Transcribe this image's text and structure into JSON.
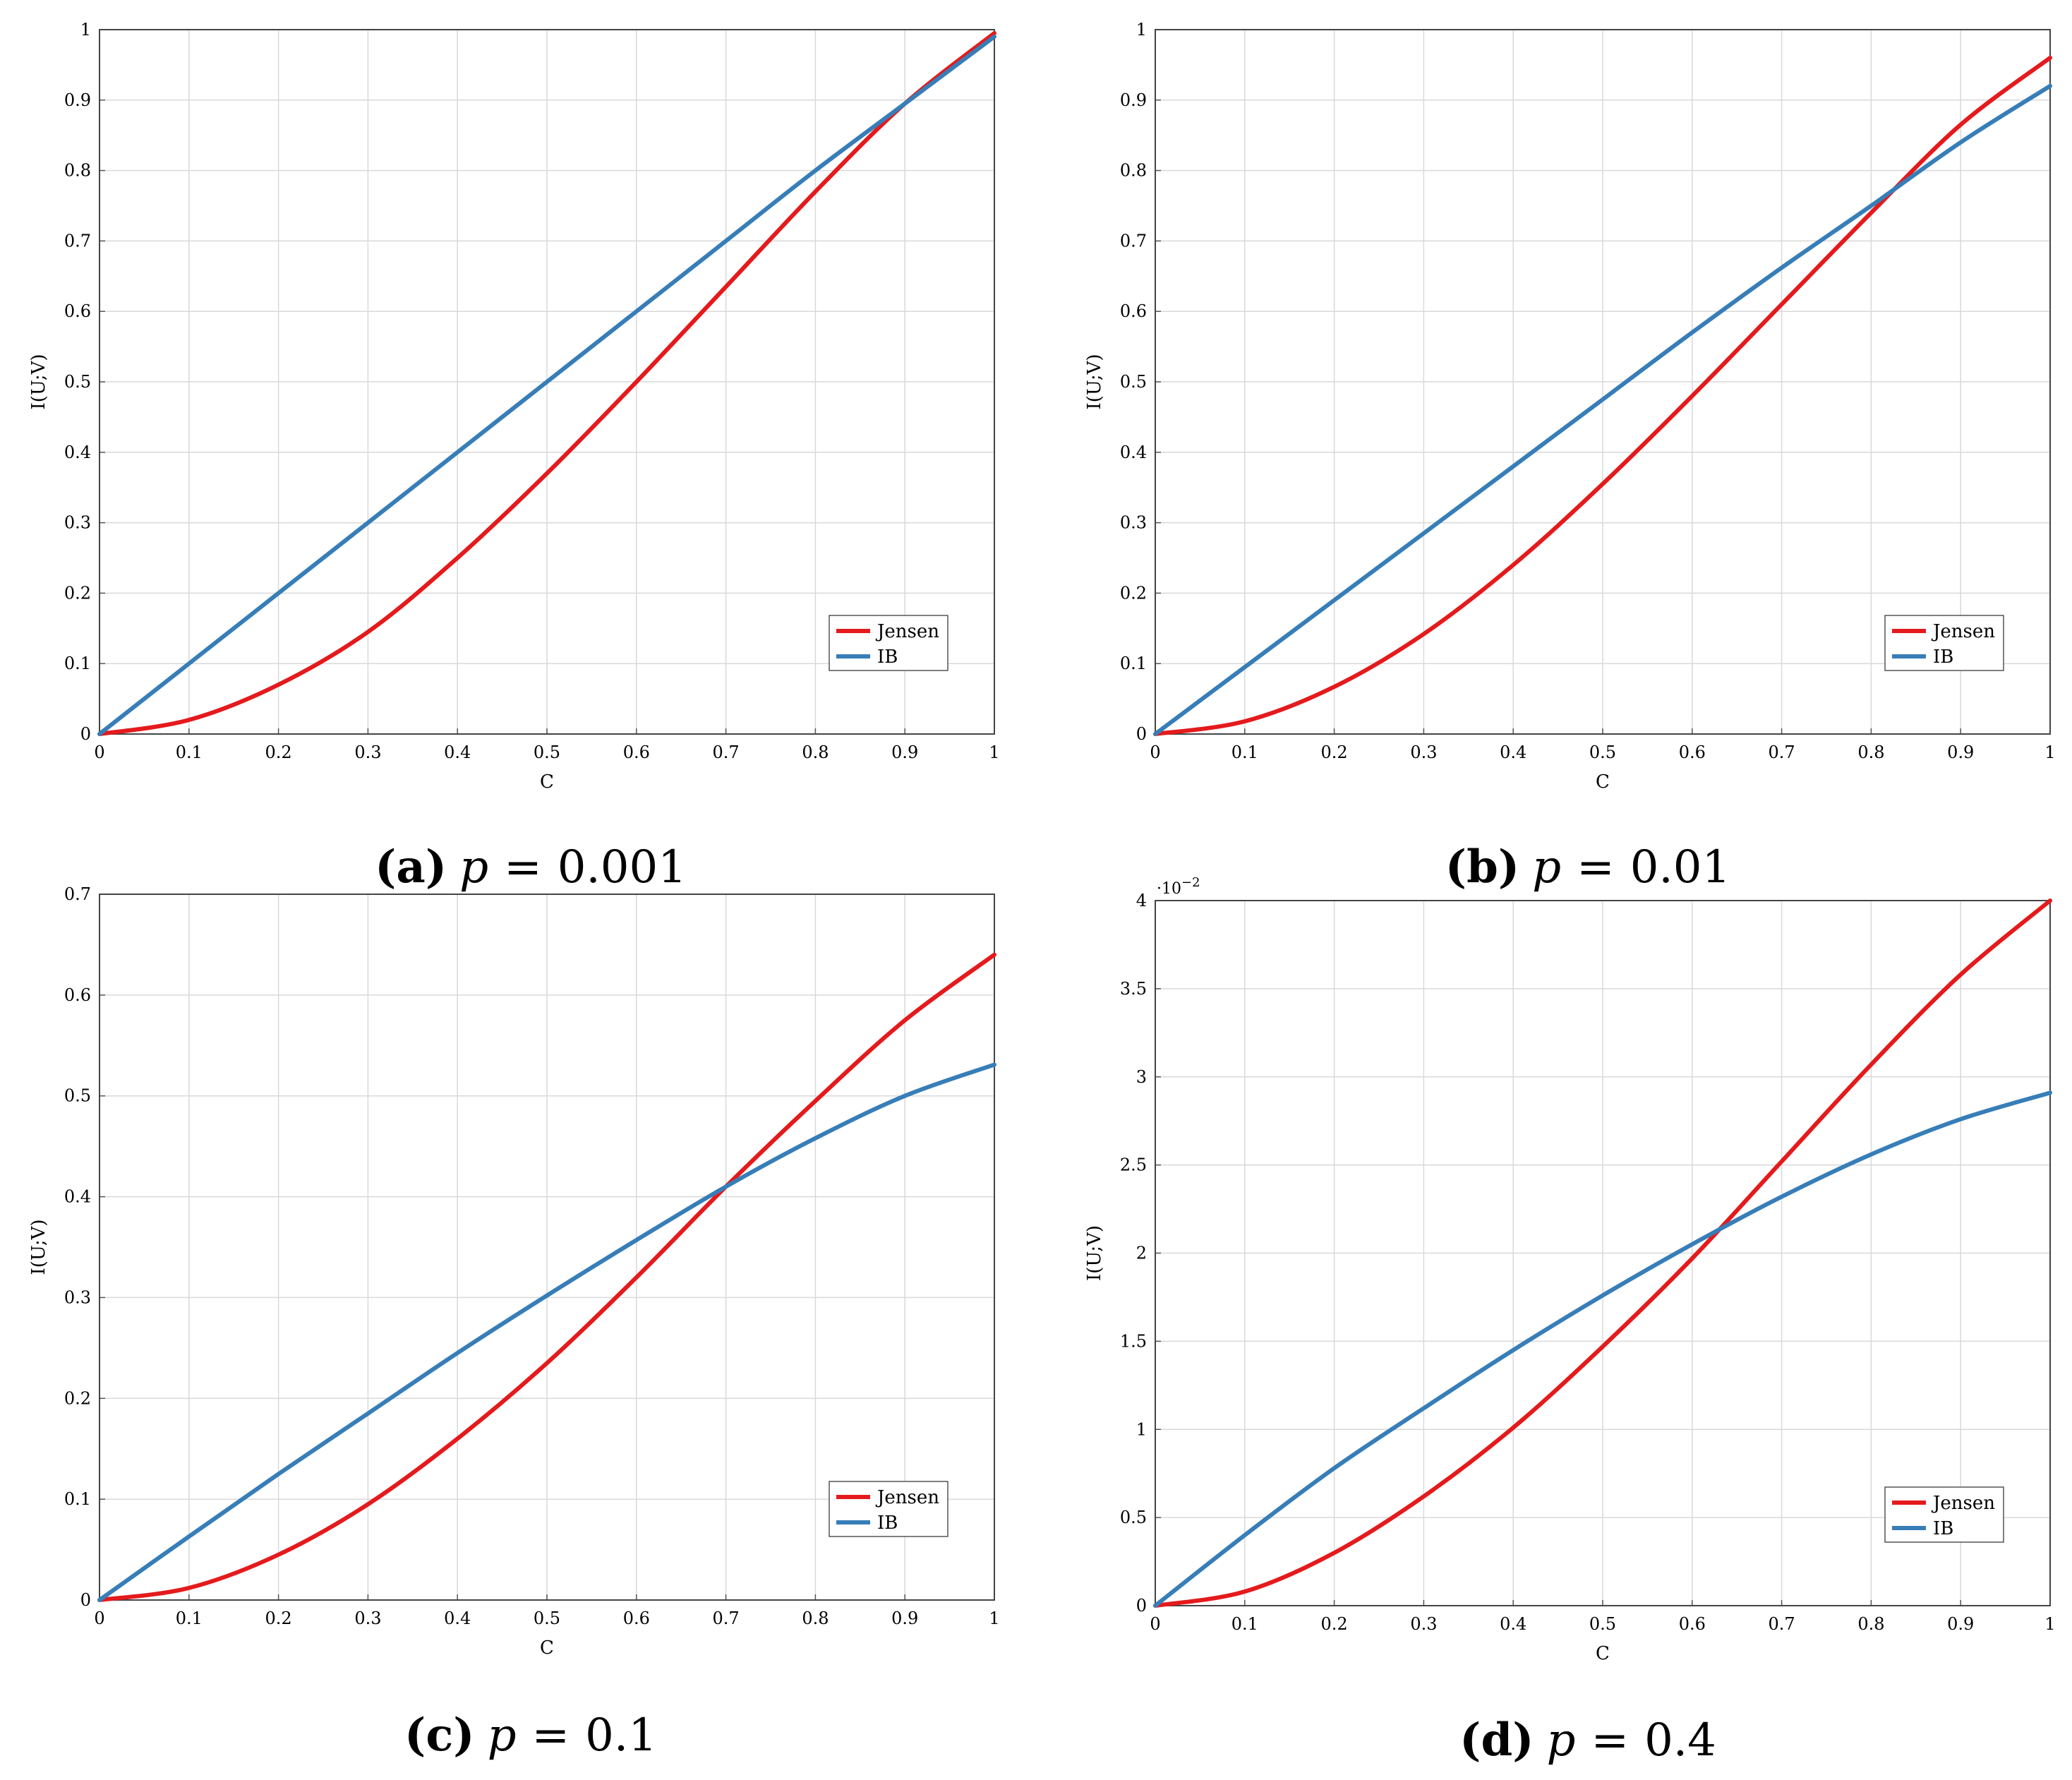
{
  "chart_data": [
    {
      "type": "line",
      "panel": "a",
      "caption": {
        "label": "(a)",
        "variable": "p",
        "equals": "=",
        "value": "0.001"
      },
      "xlabel": "C",
      "ylabel": "I(U;V)",
      "xlim": [
        0,
        1
      ],
      "ylim": [
        0,
        1
      ],
      "x_ticks": [
        "0",
        "0.1",
        "0.2",
        "0.3",
        "0.4",
        "0.5",
        "0.6",
        "0.7",
        "0.8",
        "0.9",
        "1"
      ],
      "y_ticks": [
        "0",
        "0.1",
        "0.2",
        "0.3",
        "0.4",
        "0.5",
        "0.6",
        "0.7",
        "0.8",
        "0.9",
        "1"
      ],
      "y_multiplier": "",
      "grid": true,
      "legend_position": "lower-right",
      "x": [
        0,
        0.1,
        0.2,
        0.3,
        0.4,
        0.5,
        0.6,
        0.7,
        0.8,
        0.9,
        1.0
      ],
      "series": [
        {
          "name": "Jensen",
          "color": "#e41a1c",
          "values": [
            0,
            0.02,
            0.07,
            0.145,
            0.25,
            0.37,
            0.5,
            0.635,
            0.77,
            0.895,
            0.995
          ]
        },
        {
          "name": "IB",
          "color": "#377eb8",
          "values": [
            0,
            0.1,
            0.2,
            0.3,
            0.4,
            0.5,
            0.6,
            0.7,
            0.8,
            0.895,
            0.99
          ]
        }
      ]
    },
    {
      "type": "line",
      "panel": "b",
      "caption": {
        "label": "(b)",
        "variable": "p",
        "equals": "=",
        "value": "0.01"
      },
      "xlabel": "C",
      "ylabel": "I(U;V)",
      "xlim": [
        0,
        1
      ],
      "ylim": [
        0,
        1
      ],
      "x_ticks": [
        "0",
        "0.1",
        "0.2",
        "0.3",
        "0.4",
        "0.5",
        "0.6",
        "0.7",
        "0.8",
        "0.9",
        "1"
      ],
      "y_ticks": [
        "0",
        "0.1",
        "0.2",
        "0.3",
        "0.4",
        "0.5",
        "0.6",
        "0.7",
        "0.8",
        "0.9",
        "1"
      ],
      "y_multiplier": "",
      "grid": true,
      "legend_position": "lower-right",
      "x": [
        0,
        0.1,
        0.2,
        0.3,
        0.4,
        0.5,
        0.6,
        0.7,
        0.8,
        0.9,
        1.0
      ],
      "series": [
        {
          "name": "Jensen",
          "color": "#e41a1c",
          "values": [
            0,
            0.018,
            0.067,
            0.142,
            0.24,
            0.355,
            0.48,
            0.61,
            0.74,
            0.865,
            0.96
          ]
        },
        {
          "name": "IB",
          "color": "#377eb8",
          "values": [
            0,
            0.095,
            0.19,
            0.285,
            0.38,
            0.475,
            0.57,
            0.662,
            0.75,
            0.84,
            0.92
          ]
        }
      ]
    },
    {
      "type": "line",
      "panel": "c",
      "caption": {
        "label": "(c)",
        "variable": "p",
        "equals": "=",
        "value": "0.1"
      },
      "xlabel": "C",
      "ylabel": "I(U;V)",
      "xlim": [
        0,
        1
      ],
      "ylim": [
        0,
        0.7
      ],
      "x_ticks": [
        "0",
        "0.1",
        "0.2",
        "0.3",
        "0.4",
        "0.5",
        "0.6",
        "0.7",
        "0.8",
        "0.9",
        "1"
      ],
      "y_ticks": [
        "0",
        "0.1",
        "0.2",
        "0.3",
        "0.4",
        "0.5",
        "0.6",
        "0.7"
      ],
      "y_multiplier": "",
      "grid": true,
      "legend_position": "lower-right",
      "x": [
        0,
        0.1,
        0.2,
        0.3,
        0.4,
        0.5,
        0.6,
        0.7,
        0.8,
        0.9,
        1.0
      ],
      "series": [
        {
          "name": "Jensen",
          "color": "#e41a1c",
          "values": [
            0,
            0.012,
            0.045,
            0.095,
            0.16,
            0.235,
            0.32,
            0.41,
            0.495,
            0.575,
            0.64
          ]
        },
        {
          "name": "IB",
          "color": "#377eb8",
          "values": [
            0,
            0.063,
            0.125,
            0.185,
            0.245,
            0.302,
            0.357,
            0.41,
            0.458,
            0.5,
            0.531
          ]
        }
      ]
    },
    {
      "type": "line",
      "panel": "d",
      "caption": {
        "label": "(d)",
        "variable": "p",
        "equals": "=",
        "value": "0.4"
      },
      "xlabel": "C",
      "ylabel": "I(U;V)",
      "xlim": [
        0,
        1
      ],
      "ylim": [
        0,
        4
      ],
      "x_ticks": [
        "0",
        "0.1",
        "0.2",
        "0.3",
        "0.4",
        "0.5",
        "0.6",
        "0.7",
        "0.8",
        "0.9",
        "1"
      ],
      "y_ticks": [
        "0",
        "0.5",
        "1",
        "1.5",
        "2",
        "2.5",
        "3",
        "3.5",
        "4"
      ],
      "y_multiplier": "·10",
      "y_multiplier_exponent": "−2",
      "grid": true,
      "legend_position": "lower-right",
      "x": [
        0,
        0.1,
        0.2,
        0.3,
        0.4,
        0.5,
        0.6,
        0.7,
        0.8,
        0.9,
        1.0
      ],
      "series": [
        {
          "name": "Jensen",
          "color": "#e41a1c",
          "values": [
            0,
            0.08,
            0.3,
            0.62,
            1.01,
            1.47,
            1.97,
            2.52,
            3.07,
            3.58,
            4.0
          ]
        },
        {
          "name": "IB",
          "color": "#377eb8",
          "values": [
            0,
            0.4,
            0.78,
            1.12,
            1.45,
            1.76,
            2.05,
            2.32,
            2.56,
            2.76,
            2.91
          ]
        }
      ]
    }
  ]
}
